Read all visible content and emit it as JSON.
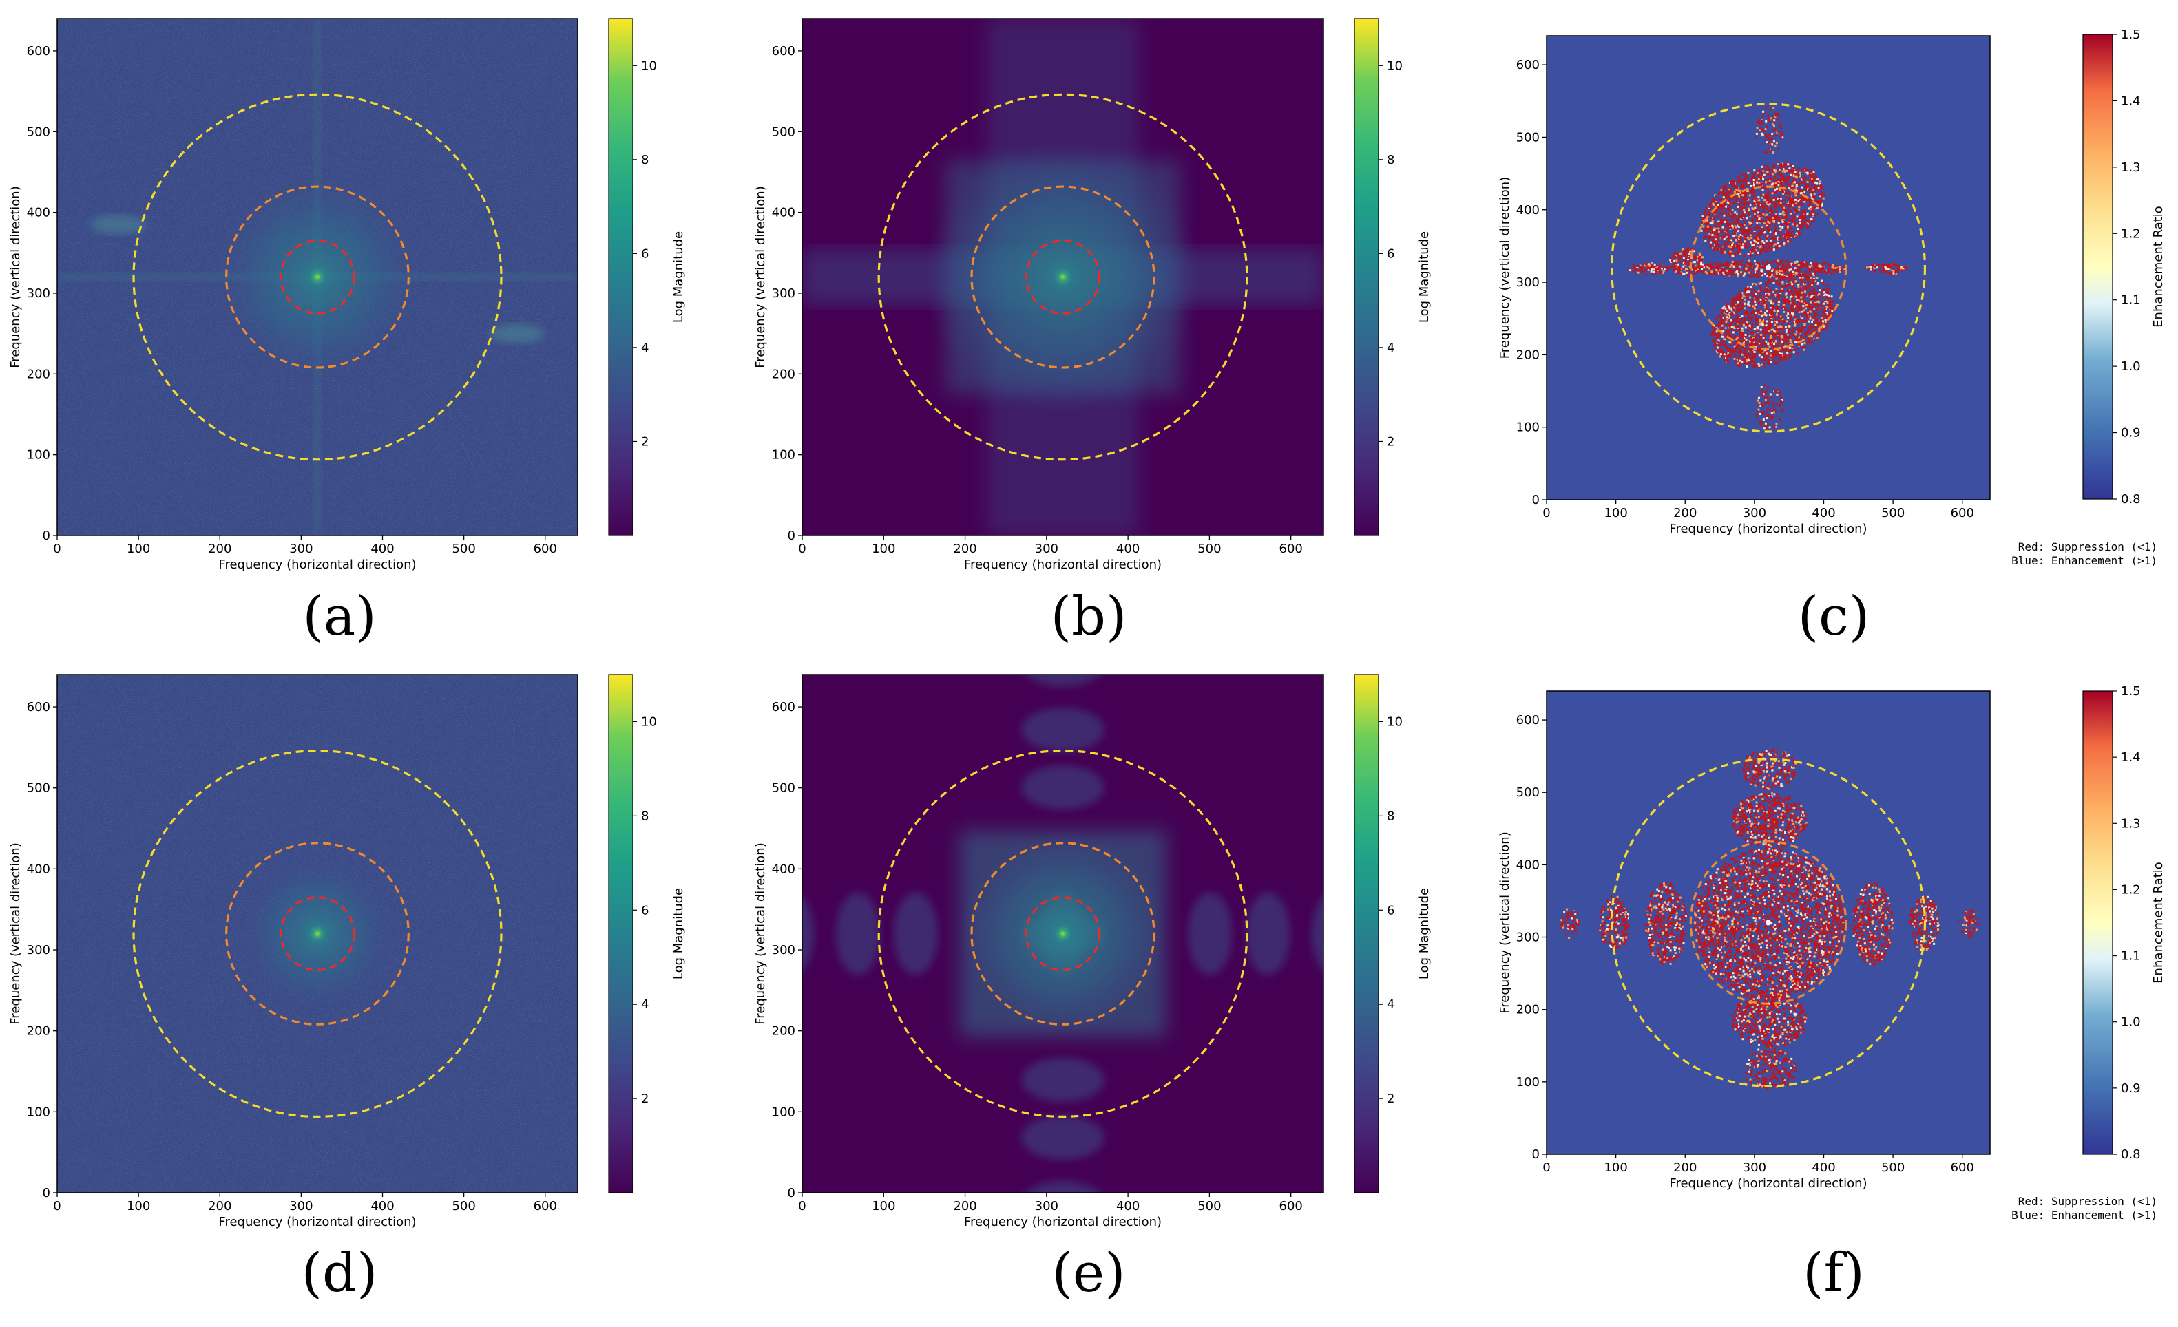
{
  "figure_labels": [
    "(a)",
    "(b)",
    "(c)",
    "(d)",
    "(e)",
    "(f)"
  ],
  "colors": {
    "ring_inner": "#e82c2c",
    "ring_middle": "#f08a2c",
    "ring_outer": "#f5dc2c",
    "viridis_bg_noise": "#31517f",
    "viridis_bg_dark": "#440154",
    "rdylbu_blue": "#3c4fa0",
    "rdylbu_red": "#c2151b"
  },
  "chart_data": [
    {
      "panel": "(a)",
      "type": "heatmap",
      "variant": "magnitude-noisy",
      "xlabel": "Frequency (horizontal direction)",
      "ylabel": "Frequency (vertical direction)",
      "xlim": [
        0,
        640
      ],
      "ylim": [
        0,
        640
      ],
      "xticks": [
        0,
        100,
        200,
        300,
        400,
        500,
        600
      ],
      "yticks": [
        0,
        100,
        200,
        300,
        400,
        500,
        600
      ],
      "rings": [
        {
          "cx": 320,
          "cy": 320,
          "r": 45,
          "color": "red"
        },
        {
          "cx": 320,
          "cy": 320,
          "r": 112,
          "color": "orange"
        },
        {
          "cx": 320,
          "cy": 320,
          "r": 226,
          "color": "yellow"
        }
      ],
      "colorbar": {
        "label": "Log Magnitude",
        "cmap": "viridis",
        "range": [
          0,
          11
        ],
        "ticks": [
          2,
          4,
          6,
          8,
          10
        ]
      }
    },
    {
      "panel": "(b)",
      "type": "heatmap",
      "variant": "magnitude-clean-cross",
      "xlabel": "Frequency (horizontal direction)",
      "ylabel": "Frequency (vertical direction)",
      "xlim": [
        0,
        640
      ],
      "ylim": [
        0,
        640
      ],
      "xticks": [
        0,
        100,
        200,
        300,
        400,
        500,
        600
      ],
      "yticks": [
        0,
        100,
        200,
        300,
        400,
        500,
        600
      ],
      "rings": [
        {
          "cx": 320,
          "cy": 320,
          "r": 45,
          "color": "red"
        },
        {
          "cx": 320,
          "cy": 320,
          "r": 112,
          "color": "orange"
        },
        {
          "cx": 320,
          "cy": 320,
          "r": 226,
          "color": "yellow"
        }
      ],
      "colorbar": {
        "label": "Log Magnitude",
        "cmap": "viridis",
        "range": [
          0,
          11
        ],
        "ticks": [
          2,
          4,
          6,
          8,
          10
        ]
      }
    },
    {
      "panel": "(c)",
      "type": "heatmap",
      "variant": "ratio-diagonal",
      "xlabel": "Frequency (horizontal direction)",
      "ylabel": "Frequency (vertical direction)",
      "xlim": [
        0,
        640
      ],
      "ylim": [
        0,
        640
      ],
      "xticks": [
        0,
        100,
        200,
        300,
        400,
        500,
        600
      ],
      "yticks": [
        0,
        100,
        200,
        300,
        400,
        500,
        600
      ],
      "rings": [
        {
          "cx": 320,
          "cy": 320,
          "r": 112,
          "color": "orange"
        },
        {
          "cx": 320,
          "cy": 320,
          "r": 226,
          "color": "yellow"
        }
      ],
      "colorbar": {
        "label": "Enhancement Ratio",
        "cmap": "RdYlBu_r",
        "range": [
          0.8,
          1.5
        ],
        "ticks": [
          "0.8",
          "0.9",
          "1.0",
          "1.1",
          "1.2",
          "1.3",
          "1.4",
          "1.5"
        ]
      },
      "notes": [
        "Red: Suppression (<1)",
        "Blue: Enhancement (>1)"
      ]
    },
    {
      "panel": "(d)",
      "type": "heatmap",
      "variant": "magnitude-noisy-center",
      "xlabel": "Frequency (horizontal direction)",
      "ylabel": "Frequency (vertical direction)",
      "xlim": [
        0,
        640
      ],
      "ylim": [
        0,
        640
      ],
      "xticks": [
        0,
        100,
        200,
        300,
        400,
        500,
        600
      ],
      "yticks": [
        0,
        100,
        200,
        300,
        400,
        500,
        600
      ],
      "rings": [
        {
          "cx": 320,
          "cy": 320,
          "r": 45,
          "color": "red"
        },
        {
          "cx": 320,
          "cy": 320,
          "r": 112,
          "color": "orange"
        },
        {
          "cx": 320,
          "cy": 320,
          "r": 226,
          "color": "yellow"
        }
      ],
      "colorbar": {
        "label": "Log Magnitude",
        "cmap": "viridis",
        "range": [
          0,
          11
        ],
        "ticks": [
          2,
          4,
          6,
          8,
          10
        ]
      }
    },
    {
      "panel": "(e)",
      "type": "heatmap",
      "variant": "magnitude-clean-grid",
      "xlabel": "Frequency (horizontal direction)",
      "ylabel": "Frequency (vertical direction)",
      "xlim": [
        0,
        640
      ],
      "ylim": [
        0,
        640
      ],
      "xticks": [
        0,
        100,
        200,
        300,
        400,
        500,
        600
      ],
      "yticks": [
        0,
        100,
        200,
        300,
        400,
        500,
        600
      ],
      "rings": [
        {
          "cx": 320,
          "cy": 320,
          "r": 45,
          "color": "red"
        },
        {
          "cx": 320,
          "cy": 320,
          "r": 112,
          "color": "orange"
        },
        {
          "cx": 320,
          "cy": 320,
          "r": 226,
          "color": "yellow"
        }
      ],
      "colorbar": {
        "label": "Log Magnitude",
        "cmap": "viridis",
        "range": [
          0,
          11
        ],
        "ticks": [
          2,
          4,
          6,
          8,
          10
        ]
      }
    },
    {
      "panel": "(f)",
      "type": "heatmap",
      "variant": "ratio-cross",
      "xlabel": "Frequency (horizontal direction)",
      "ylabel": "Frequency (vertical direction)",
      "xlim": [
        0,
        640
      ],
      "ylim": [
        0,
        640
      ],
      "xticks": [
        0,
        100,
        200,
        300,
        400,
        500,
        600
      ],
      "yticks": [
        0,
        100,
        200,
        300,
        400,
        500,
        600
      ],
      "rings": [
        {
          "cx": 320,
          "cy": 320,
          "r": 112,
          "color": "orange"
        },
        {
          "cx": 320,
          "cy": 320,
          "r": 226,
          "color": "yellow"
        }
      ],
      "colorbar": {
        "label": "Enhancement Ratio",
        "cmap": "RdYlBu_r",
        "range": [
          0.8,
          1.5
        ],
        "ticks": [
          "0.8",
          "0.9",
          "1.0",
          "1.1",
          "1.2",
          "1.3",
          "1.4",
          "1.5"
        ]
      },
      "notes": [
        "Red: Suppression (<1)",
        "Blue: Enhancement (>1)"
      ]
    }
  ]
}
